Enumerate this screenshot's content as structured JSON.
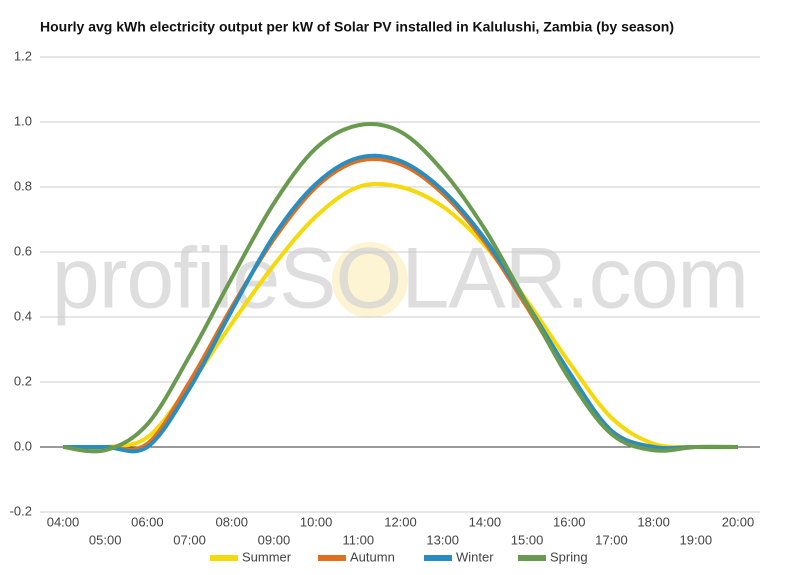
{
  "chart_data": {
    "type": "line",
    "title": "Hourly avg kWh electricity output per kW of Solar PV installed in Kalulushi, Zambia (by season)",
    "watermark": "profileSOLAR.com",
    "x": [
      "04:00",
      "05:00",
      "06:00",
      "07:00",
      "08:00",
      "09:00",
      "10:00",
      "11:00",
      "12:00",
      "13:00",
      "14:00",
      "15:00",
      "16:00",
      "17:00",
      "18:00",
      "19:00",
      "20:00"
    ],
    "series": [
      {
        "name": "Summer",
        "color": "#f5d90a",
        "values": [
          0,
          0,
          0.03,
          0.19,
          0.38,
          0.56,
          0.71,
          0.8,
          0.8,
          0.74,
          0.62,
          0.45,
          0.26,
          0.09,
          0.01,
          0,
          0
        ]
      },
      {
        "name": "Autumn",
        "color": "#e07020",
        "values": [
          0,
          0,
          0.01,
          0.2,
          0.43,
          0.64,
          0.8,
          0.88,
          0.87,
          0.78,
          0.63,
          0.43,
          0.22,
          0.05,
          0,
          0,
          0
        ]
      },
      {
        "name": "Winter",
        "color": "#2a8dc0",
        "values": [
          0,
          0,
          0,
          0.18,
          0.42,
          0.65,
          0.81,
          0.89,
          0.88,
          0.79,
          0.64,
          0.44,
          0.23,
          0.05,
          0,
          0,
          0
        ]
      },
      {
        "name": "Spring",
        "color": "#6a9a50",
        "values": [
          0,
          -0.01,
          0.07,
          0.28,
          0.52,
          0.75,
          0.92,
          0.99,
          0.97,
          0.85,
          0.67,
          0.44,
          0.21,
          0.04,
          -0.01,
          0,
          0
        ]
      }
    ],
    "ylim": [
      -0.2,
      1.2
    ],
    "yticks": [
      -0.2,
      {
        "value": 0,
        "label": "0.0"
      },
      0.2,
      0.4,
      0.6,
      0.8,
      {
        "value": 1,
        "label": "1.0"
      },
      1.2
    ],
    "grid": true,
    "legend": "bottom"
  }
}
